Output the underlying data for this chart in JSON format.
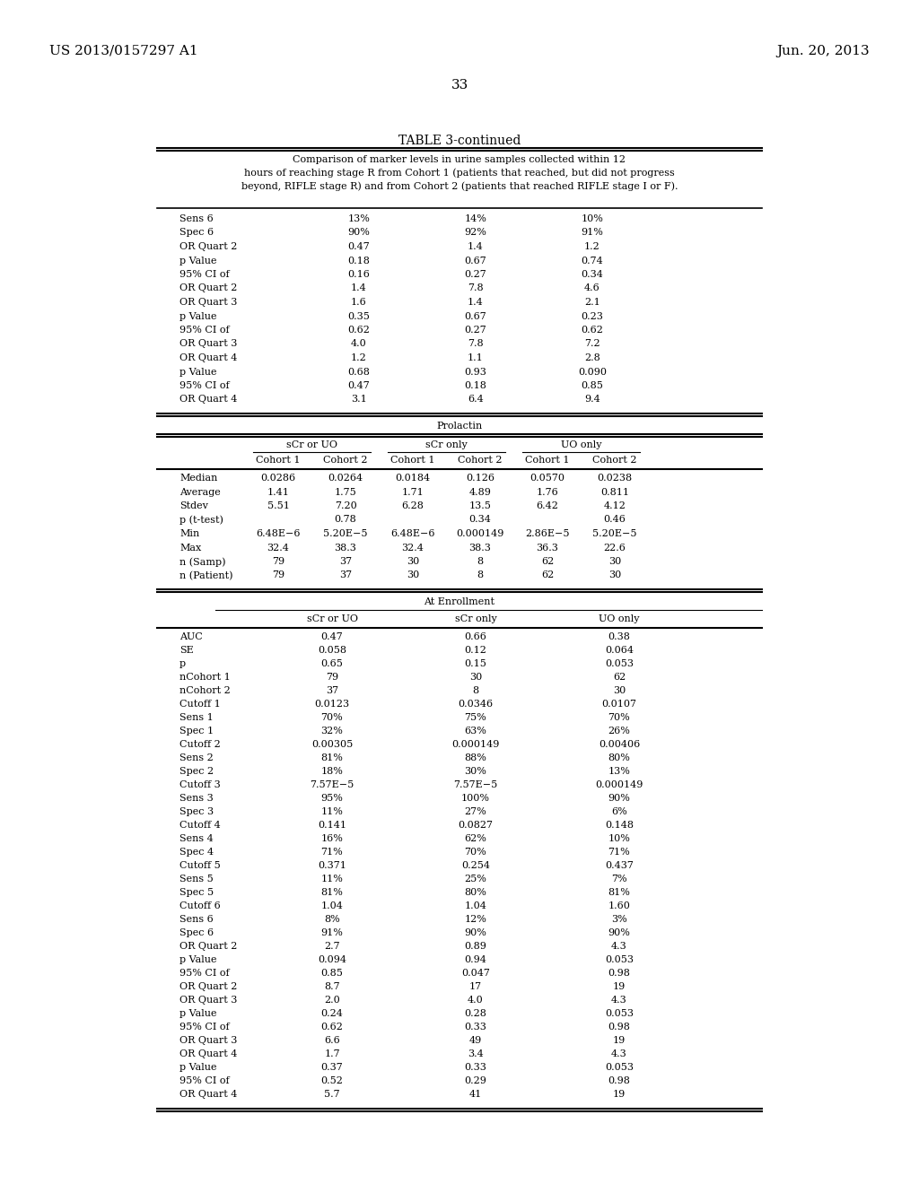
{
  "page_header_left": "US 2013/0157297 A1",
  "page_header_right": "Jun. 20, 2013",
  "page_number": "33",
  "table_title": "TABLE 3-continued",
  "table_caption": "Comparison of marker levels in urine samples collected within 12\nhours of reaching stage R from Cohort 1 (patients that reached, but did not progress\nbeyond, RIFLE stage R) and from Cohort 2 (patients that reached RIFLE stage I or F).",
  "top_rows": [
    [
      "Sens 6",
      "13%",
      "14%",
      "10%"
    ],
    [
      "Spec 6",
      "90%",
      "92%",
      "91%"
    ],
    [
      "OR Quart 2",
      "0.47",
      "1.4",
      "1.2"
    ],
    [
      "p Value",
      "0.18",
      "0.67",
      "0.74"
    ],
    [
      "95% CI of",
      "0.16",
      "0.27",
      "0.34"
    ],
    [
      "OR Quart 2",
      "1.4",
      "7.8",
      "4.6"
    ],
    [
      "OR Quart 3",
      "1.6",
      "1.4",
      "2.1"
    ],
    [
      "p Value",
      "0.35",
      "0.67",
      "0.23"
    ],
    [
      "95% CI of",
      "0.62",
      "0.27",
      "0.62"
    ],
    [
      "OR Quart 3",
      "4.0",
      "7.8",
      "7.2"
    ],
    [
      "OR Quart 4",
      "1.2",
      "1.1",
      "2.8"
    ],
    [
      "p Value",
      "0.68",
      "0.93",
      "0.090"
    ],
    [
      "95% CI of",
      "0.47",
      "0.18",
      "0.85"
    ],
    [
      "OR Quart 4",
      "3.1",
      "6.4",
      "9.4"
    ]
  ],
  "prolactin_section_title": "Prolactin",
  "prolactin_col_groups": [
    "sCr or UO",
    "sCr only",
    "UO only"
  ],
  "prolactin_sub_cols": [
    "Cohort 1",
    "Cohort 2",
    "Cohort 1",
    "Cohort 2",
    "Cohort 1",
    "Cohort 2"
  ],
  "prolactin_rows": [
    [
      "Median",
      "0.0286",
      "0.0264",
      "0.0184",
      "0.126",
      "0.0570",
      "0.0238"
    ],
    [
      "Average",
      "1.41",
      "1.75",
      "1.71",
      "4.89",
      "1.76",
      "0.811"
    ],
    [
      "Stdev",
      "5.51",
      "7.20",
      "6.28",
      "13.5",
      "6.42",
      "4.12"
    ],
    [
      "p (t-test)",
      "",
      "0.78",
      "",
      "0.34",
      "",
      "0.46"
    ],
    [
      "Min",
      "6.48E−6",
      "5.20E−5",
      "6.48E−6",
      "0.000149",
      "2.86E−5",
      "5.20E−5"
    ],
    [
      "Max",
      "32.4",
      "38.3",
      "32.4",
      "38.3",
      "36.3",
      "22.6"
    ],
    [
      "n (Samp)",
      "79",
      "37",
      "30",
      "8",
      "62",
      "30"
    ],
    [
      "n (Patient)",
      "79",
      "37",
      "30",
      "8",
      "62",
      "30"
    ]
  ],
  "enrollment_section_title": "At Enrollment",
  "enrollment_col_groups": [
    "sCr or UO",
    "sCr only",
    "UO only"
  ],
  "enrollment_rows": [
    [
      "AUC",
      "0.47",
      "0.66",
      "0.38"
    ],
    [
      "SE",
      "0.058",
      "0.12",
      "0.064"
    ],
    [
      "p",
      "0.65",
      "0.15",
      "0.053"
    ],
    [
      "nCohort 1",
      "79",
      "30",
      "62"
    ],
    [
      "nCohort 2",
      "37",
      "8",
      "30"
    ],
    [
      "Cutoff 1",
      "0.0123",
      "0.0346",
      "0.0107"
    ],
    [
      "Sens 1",
      "70%",
      "75%",
      "70%"
    ],
    [
      "Spec 1",
      "32%",
      "63%",
      "26%"
    ],
    [
      "Cutoff 2",
      "0.00305",
      "0.000149",
      "0.00406"
    ],
    [
      "Sens 2",
      "81%",
      "88%",
      "80%"
    ],
    [
      "Spec 2",
      "18%",
      "30%",
      "13%"
    ],
    [
      "Cutoff 3",
      "7.57E−5",
      "7.57E−5",
      "0.000149"
    ],
    [
      "Sens 3",
      "95%",
      "100%",
      "90%"
    ],
    [
      "Spec 3",
      "11%",
      "27%",
      "6%"
    ],
    [
      "Cutoff 4",
      "0.141",
      "0.0827",
      "0.148"
    ],
    [
      "Sens 4",
      "16%",
      "62%",
      "10%"
    ],
    [
      "Spec 4",
      "71%",
      "70%",
      "71%"
    ],
    [
      "Cutoff 5",
      "0.371",
      "0.254",
      "0.437"
    ],
    [
      "Sens 5",
      "11%",
      "25%",
      "7%"
    ],
    [
      "Spec 5",
      "81%",
      "80%",
      "81%"
    ],
    [
      "Cutoff 6",
      "1.04",
      "1.04",
      "1.60"
    ],
    [
      "Sens 6",
      "8%",
      "12%",
      "3%"
    ],
    [
      "Spec 6",
      "91%",
      "90%",
      "90%"
    ],
    [
      "OR Quart 2",
      "2.7",
      "0.89",
      "4.3"
    ],
    [
      "p Value",
      "0.094",
      "0.94",
      "0.053"
    ],
    [
      "95% CI of",
      "0.85",
      "0.047",
      "0.98"
    ],
    [
      "OR Quart 2",
      "8.7",
      "17",
      "19"
    ],
    [
      "OR Quart 3",
      "2.0",
      "4.0",
      "4.3"
    ],
    [
      "p Value",
      "0.24",
      "0.28",
      "0.053"
    ],
    [
      "95% CI of",
      "0.62",
      "0.33",
      "0.98"
    ],
    [
      "OR Quart 3",
      "6.6",
      "49",
      "19"
    ],
    [
      "OR Quart 4",
      "1.7",
      "3.4",
      "4.3"
    ],
    [
      "p Value",
      "0.37",
      "0.33",
      "0.053"
    ],
    [
      "95% CI of",
      "0.52",
      "0.29",
      "0.98"
    ],
    [
      "OR Quart 4",
      "5.7",
      "41",
      "19"
    ]
  ]
}
